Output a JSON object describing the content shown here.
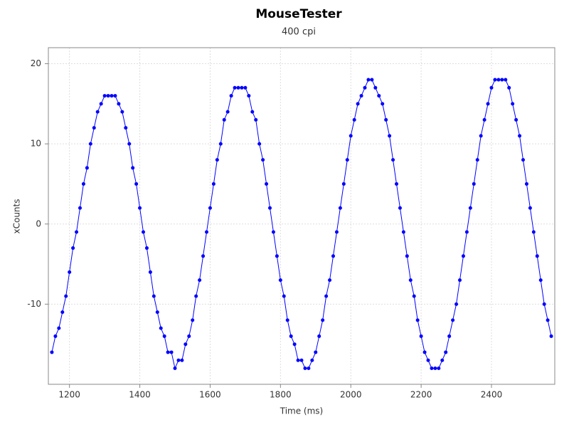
{
  "chart_data": {
    "type": "scatter",
    "title": "MouseTester",
    "subtitle": "400 cpi",
    "x_label": "Time (ms)",
    "y_label": "xCounts",
    "xlim": [
      1140,
      2580
    ],
    "ylim": [
      -20,
      22
    ],
    "xticks": [
      1200,
      1400,
      1600,
      1800,
      2000,
      2200,
      2400
    ],
    "yticks": [
      -10,
      0,
      10,
      20
    ],
    "grid": true,
    "line": true,
    "series": [
      {
        "color": "#0000ff",
        "x": [
          1150,
          1160,
          1170,
          1180,
          1190,
          1200,
          1210,
          1220,
          1230,
          1240,
          1250,
          1260,
          1270,
          1280,
          1290,
          1300,
          1310,
          1320,
          1330,
          1340,
          1350,
          1360,
          1370,
          1380,
          1390,
          1400,
          1410,
          1420,
          1430,
          1440,
          1450,
          1460,
          1470,
          1480,
          1490,
          1500,
          1510,
          1520,
          1530,
          1540,
          1550,
          1560,
          1570,
          1580,
          1590,
          1600,
          1610,
          1620,
          1630,
          1640,
          1650,
          1660,
          1670,
          1680,
          1690,
          1700,
          1710,
          1720,
          1730,
          1740,
          1750,
          1760,
          1770,
          1780,
          1790,
          1800,
          1810,
          1820,
          1830,
          1840,
          1850,
          1860,
          1870,
          1880,
          1890,
          1900,
          1910,
          1920,
          1930,
          1940,
          1950,
          1960,
          1970,
          1980,
          1990,
          2000,
          2010,
          2020,
          2030,
          2040,
          2050,
          2060,
          2070,
          2080,
          2090,
          2100,
          2110,
          2120,
          2130,
          2140,
          2150,
          2160,
          2170,
          2180,
          2190,
          2200,
          2210,
          2220,
          2230,
          2240,
          2250,
          2260,
          2270,
          2280,
          2290,
          2300,
          2310,
          2320,
          2330,
          2340,
          2350,
          2360,
          2370,
          2380,
          2390,
          2400,
          2410,
          2420,
          2430,
          2440,
          2450,
          2460,
          2470,
          2480,
          2490,
          2500,
          2510,
          2520,
          2530,
          2540,
          2550,
          2560,
          2570
        ],
        "values": [
          -16,
          -14,
          -13,
          -11,
          -9,
          -6,
          -3,
          -1,
          2,
          5,
          7,
          10,
          12,
          14,
          15,
          16,
          16,
          16,
          16,
          15,
          14,
          12,
          10,
          7,
          5,
          2,
          -1,
          -3,
          -6,
          -9,
          -11,
          -13,
          -14,
          -16,
          -16,
          -18,
          -17,
          -17,
          -15,
          -14,
          -12,
          -9,
          -7,
          -4,
          -1,
          2,
          5,
          8,
          10,
          13,
          14,
          16,
          17,
          17,
          17,
          17,
          16,
          14,
          13,
          10,
          8,
          5,
          2,
          -1,
          -4,
          -7,
          -9,
          -12,
          -14,
          -15,
          -17,
          -17,
          -18,
          -18,
          -17,
          -16,
          -14,
          -12,
          -9,
          -7,
          -4,
          -1,
          2,
          5,
          8,
          11,
          13,
          15,
          16,
          17,
          18,
          18,
          17,
          16,
          15,
          13,
          11,
          8,
          5,
          2,
          -1,
          -4,
          -7,
          -9,
          -12,
          -14,
          -16,
          -17,
          -18,
          -18,
          -18,
          -17,
          -16,
          -14,
          -12,
          -10,
          -7,
          -4,
          -1,
          2,
          5,
          8,
          11,
          13,
          15,
          17,
          18,
          18,
          18,
          18,
          17,
          15,
          13,
          11,
          8,
          5,
          2,
          -1,
          -4,
          -7,
          -10,
          -12,
          -14
        ]
      }
    ]
  }
}
